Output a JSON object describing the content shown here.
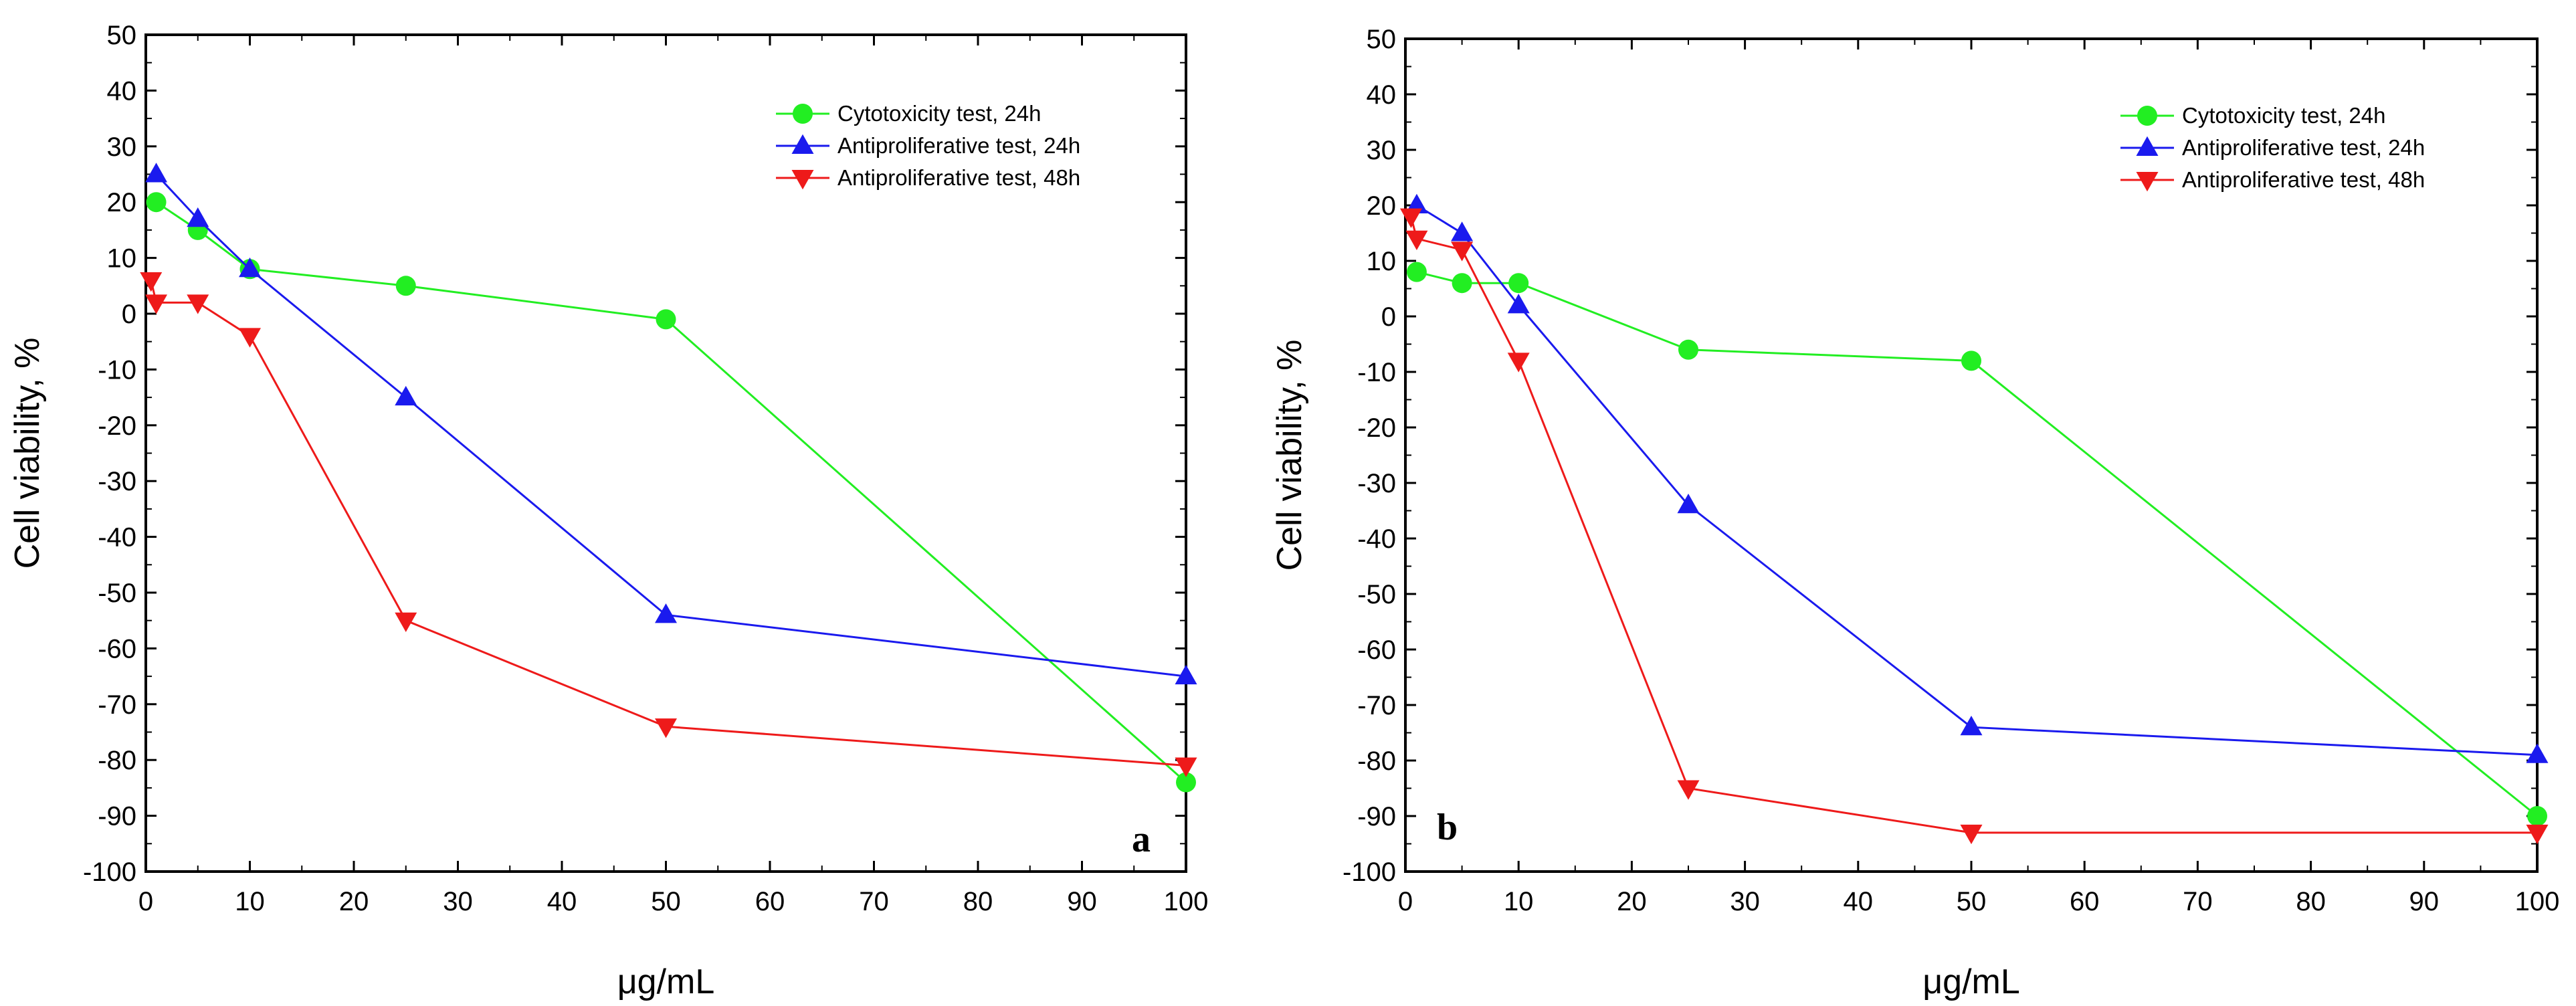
{
  "chart_data": [
    {
      "type": "line",
      "panel_label": "a",
      "xlabel": "μg/mL",
      "ylabel": "Cell viability, %",
      "xlim": [
        0,
        100
      ],
      "ylim": [
        -100,
        50
      ],
      "xticks": [
        0,
        10,
        20,
        30,
        40,
        50,
        60,
        70,
        80,
        90,
        100
      ],
      "yticks": [
        50,
        40,
        30,
        20,
        10,
        0,
        -10,
        -20,
        -30,
        -40,
        -50,
        -60,
        -70,
        -80,
        -90,
        -100
      ],
      "legend_position": "top-right",
      "series": [
        {
          "name": "Cytotoxicity test, 24h",
          "color": "#22ee22",
          "marker": "circle",
          "x": [
            1,
            5,
            10,
            25,
            50,
            100
          ],
          "y": [
            20,
            15,
            8,
            5,
            -1,
            -84
          ]
        },
        {
          "name": "Antiproliferative test, 24h",
          "color": "#1a1aee",
          "marker": "triangle-up",
          "x": [
            1,
            5,
            10,
            25,
            50,
            100
          ],
          "y": [
            25,
            17,
            8,
            -15,
            -54,
            -65
          ]
        },
        {
          "name": "Antiproliferative test, 48h",
          "color": "#ee1a1a",
          "marker": "triangle-down",
          "x": [
            0.5,
            1,
            5,
            10,
            25,
            50,
            100
          ],
          "y": [
            6,
            2,
            2,
            -4,
            -55,
            -74,
            -81
          ]
        }
      ]
    },
    {
      "type": "line",
      "panel_label": "b",
      "xlabel": "μg/mL",
      "ylabel": "Cell viability, %",
      "xlim": [
        0,
        100
      ],
      "ylim": [
        -100,
        50
      ],
      "xticks": [
        0,
        10,
        20,
        30,
        40,
        50,
        60,
        70,
        80,
        90,
        100
      ],
      "yticks": [
        50,
        40,
        30,
        20,
        10,
        0,
        -10,
        -20,
        -30,
        -40,
        -50,
        -60,
        -70,
        -80,
        -90,
        -100
      ],
      "legend_position": "top-right",
      "series": [
        {
          "name": "Cytotoxicity test, 24h",
          "color": "#22ee22",
          "marker": "circle",
          "x": [
            1,
            5,
            10,
            25,
            50,
            100
          ],
          "y": [
            8,
            6,
            6,
            -6,
            -8,
            -90
          ]
        },
        {
          "name": "Antiproliferative test, 24h",
          "color": "#1a1aee",
          "marker": "triangle-up",
          "x": [
            1,
            5,
            10,
            25,
            50,
            100
          ],
          "y": [
            20,
            15,
            2,
            -34,
            -74,
            -79
          ]
        },
        {
          "name": "Antiproliferative test, 48h",
          "color": "#ee1a1a",
          "marker": "triangle-down",
          "x": [
            0.5,
            1,
            5,
            10,
            25,
            50,
            100
          ],
          "y": [
            18,
            14,
            12,
            -8,
            -85,
            -93,
            -93
          ]
        }
      ]
    }
  ]
}
